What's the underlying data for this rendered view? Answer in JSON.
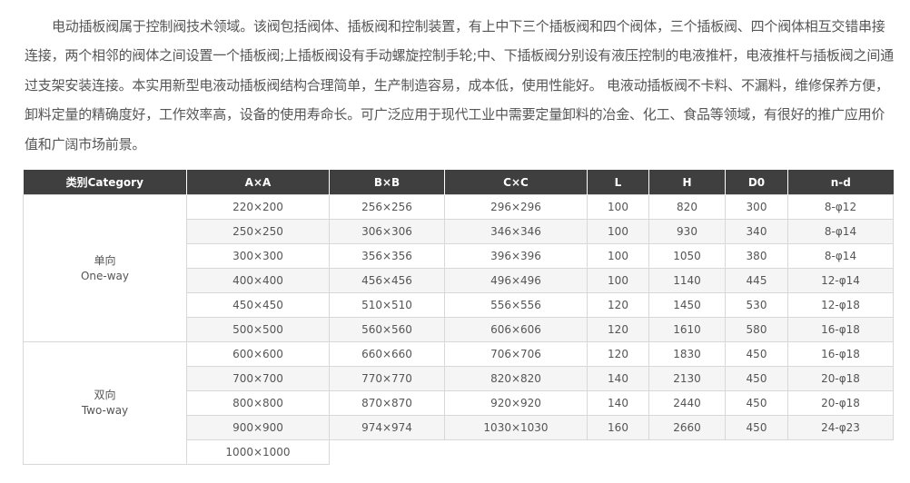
{
  "intro": "电动插板阀属于控制阀技术领域。该阀包括阀体、插板阀和控制装置，有上中下三个插板阀和四个阀体，三个插板阀、四个阀体相互交错串接连接，两个相邻的阀体之间设置一个插板阀;上插板阀设有手动螺旋控制手轮;中、下插板阀分别设有液压控制的电液推杆，电液推杆与插板阀之间通过支架安装连接。本实用新型电液动插板阀结构合理简单，生产制造容易，成本低，使用性能好。 电液动插板阀不卡料、不漏料，维修保养方便，卸料定量的精确度好，工作效率高，设备的使用寿命长。可广泛应用于现代工业中需要定量卸料的冶金、化工、食品等领域，有很好的推广应用价值和广阔市场前景。",
  "table": {
    "headers": [
      "类别Category",
      "A×A",
      "B×B",
      "C×C",
      "L",
      "H",
      "D0",
      "n-d"
    ],
    "groups": [
      {
        "cn": "单向",
        "en": "One-way",
        "rows": [
          [
            "220×200",
            "256×256",
            "296×296",
            "100",
            "820",
            "300",
            "8-φ12"
          ],
          [
            "250×250",
            "306×306",
            "346×346",
            "100",
            "930",
            "340",
            "8-φ14"
          ],
          [
            "300×300",
            "356×356",
            "396×396",
            "100",
            "1050",
            "380",
            "8-φ14"
          ],
          [
            "400×400",
            "456×456",
            "496×496",
            "100",
            "1140",
            "445",
            "12-φ14"
          ],
          [
            "450×450",
            "510×510",
            "556×556",
            "120",
            "1450",
            "530",
            "12-φ18"
          ],
          [
            "500×500",
            "560×560",
            "606×606",
            "120",
            "1610",
            "580",
            "16-φ18"
          ]
        ]
      },
      {
        "cn": "双向",
        "en": "Two-way",
        "rows": [
          [
            "600×600",
            "660×660",
            "706×706",
            "120",
            "1830",
            "450",
            "16-φ18"
          ],
          [
            "700×700",
            "770×770",
            "820×820",
            "140",
            "2130",
            "450",
            "20-φ18"
          ],
          [
            "800×800",
            "870×870",
            "920×920",
            "140",
            "2440",
            "450",
            "20-φ18"
          ],
          [
            "900×900",
            "974×974",
            "1030×1030",
            "160",
            "2660",
            "450",
            "24-φ23"
          ],
          [
            "1000×1000"
          ]
        ]
      }
    ]
  }
}
